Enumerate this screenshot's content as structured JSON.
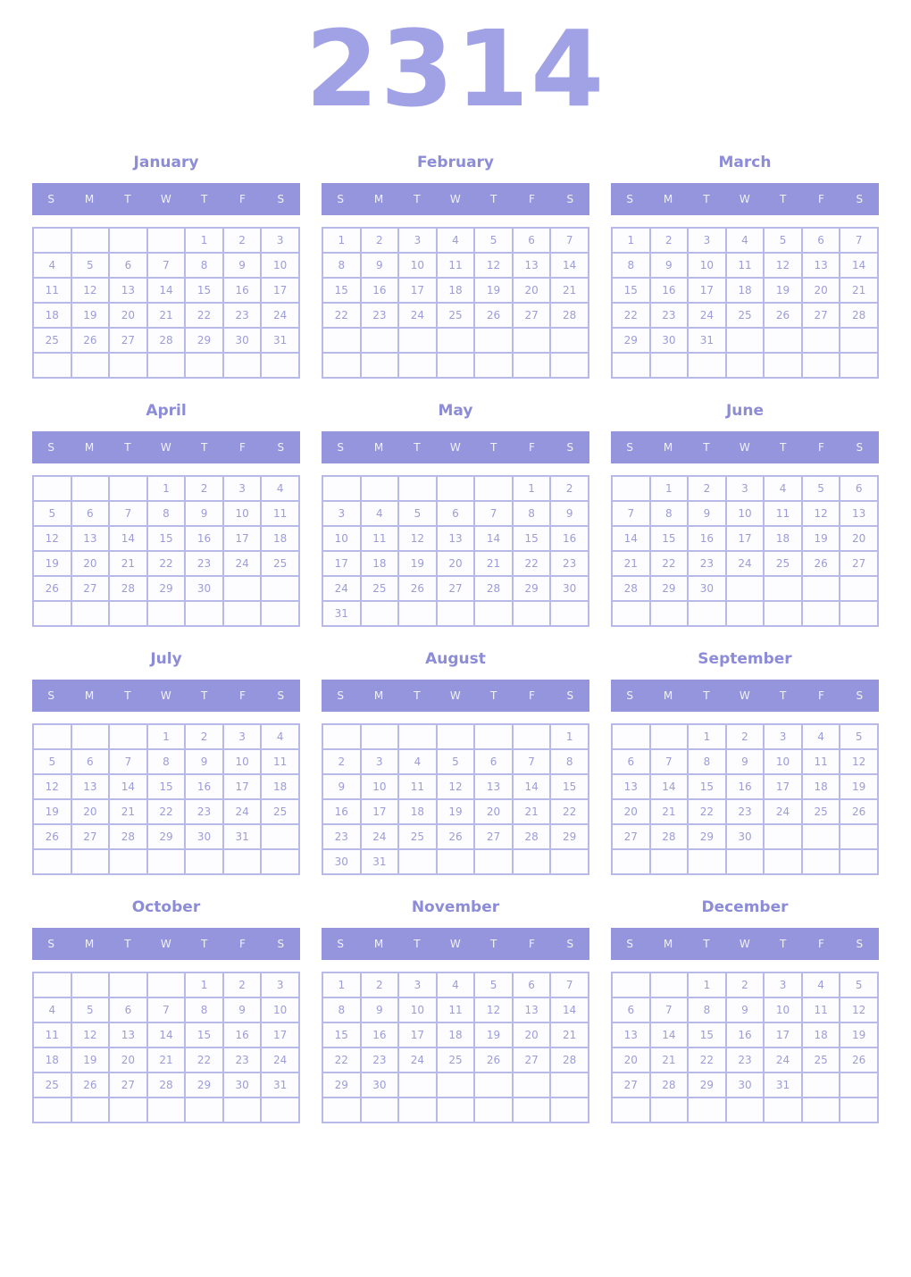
{
  "page": {
    "year": "2314"
  },
  "colors": {
    "year_text": "#a1a1e5",
    "month_title_text": "#8c8cd8",
    "weekday_bar_background": "#9495dd",
    "weekday_bar_text": "#f2f2fb",
    "cell_border": "#b9b9e9",
    "cell_background": "#fdfdff",
    "day_number_text": "#9c9cd9",
    "page_background": "#ffffff"
  },
  "weekday_headers": [
    "S",
    "M",
    "T",
    "W",
    "T",
    "F",
    "S"
  ],
  "months": [
    {
      "name": "January",
      "weeks": [
        [
          "",
          "",
          "",
          "",
          "1",
          "2",
          "3"
        ],
        [
          "4",
          "5",
          "6",
          "7",
          "8",
          "9",
          "10"
        ],
        [
          "11",
          "12",
          "13",
          "14",
          "15",
          "16",
          "17"
        ],
        [
          "18",
          "19",
          "20",
          "21",
          "22",
          "23",
          "24"
        ],
        [
          "25",
          "26",
          "27",
          "28",
          "29",
          "30",
          "31"
        ],
        [
          "",
          "",
          "",
          "",
          "",
          "",
          ""
        ]
      ]
    },
    {
      "name": "February",
      "weeks": [
        [
          "1",
          "2",
          "3",
          "4",
          "5",
          "6",
          "7"
        ],
        [
          "8",
          "9",
          "10",
          "11",
          "12",
          "13",
          "14"
        ],
        [
          "15",
          "16",
          "17",
          "18",
          "19",
          "20",
          "21"
        ],
        [
          "22",
          "23",
          "24",
          "25",
          "26",
          "27",
          "28"
        ],
        [
          "",
          "",
          "",
          "",
          "",
          "",
          ""
        ],
        [
          "",
          "",
          "",
          "",
          "",
          "",
          ""
        ]
      ]
    },
    {
      "name": "March",
      "weeks": [
        [
          "1",
          "2",
          "3",
          "4",
          "5",
          "6",
          "7"
        ],
        [
          "8",
          "9",
          "10",
          "11",
          "12",
          "13",
          "14"
        ],
        [
          "15",
          "16",
          "17",
          "18",
          "19",
          "20",
          "21"
        ],
        [
          "22",
          "23",
          "24",
          "25",
          "26",
          "27",
          "28"
        ],
        [
          "29",
          "30",
          "31",
          "",
          "",
          "",
          ""
        ],
        [
          "",
          "",
          "",
          "",
          "",
          "",
          ""
        ]
      ]
    },
    {
      "name": "April",
      "weeks": [
        [
          "",
          "",
          "",
          "1",
          "2",
          "3",
          "4"
        ],
        [
          "5",
          "6",
          "7",
          "8",
          "9",
          "10",
          "11"
        ],
        [
          "12",
          "13",
          "14",
          "15",
          "16",
          "17",
          "18"
        ],
        [
          "19",
          "20",
          "21",
          "22",
          "23",
          "24",
          "25"
        ],
        [
          "26",
          "27",
          "28",
          "29",
          "30",
          "",
          ""
        ],
        [
          "",
          "",
          "",
          "",
          "",
          "",
          ""
        ]
      ]
    },
    {
      "name": "May",
      "weeks": [
        [
          "",
          "",
          "",
          "",
          "",
          "1",
          "2"
        ],
        [
          "3",
          "4",
          "5",
          "6",
          "7",
          "8",
          "9"
        ],
        [
          "10",
          "11",
          "12",
          "13",
          "14",
          "15",
          "16"
        ],
        [
          "17",
          "18",
          "19",
          "20",
          "21",
          "22",
          "23"
        ],
        [
          "24",
          "25",
          "26",
          "27",
          "28",
          "29",
          "30"
        ],
        [
          "31",
          "",
          "",
          "",
          "",
          "",
          ""
        ]
      ]
    },
    {
      "name": "June",
      "weeks": [
        [
          "",
          "1",
          "2",
          "3",
          "4",
          "5",
          "6"
        ],
        [
          "7",
          "8",
          "9",
          "10",
          "11",
          "12",
          "13"
        ],
        [
          "14",
          "15",
          "16",
          "17",
          "18",
          "19",
          "20"
        ],
        [
          "21",
          "22",
          "23",
          "24",
          "25",
          "26",
          "27"
        ],
        [
          "28",
          "29",
          "30",
          "",
          "",
          "",
          ""
        ],
        [
          "",
          "",
          "",
          "",
          "",
          "",
          ""
        ]
      ]
    },
    {
      "name": "July",
      "weeks": [
        [
          "",
          "",
          "",
          "1",
          "2",
          "3",
          "4"
        ],
        [
          "5",
          "6",
          "7",
          "8",
          "9",
          "10",
          "11"
        ],
        [
          "12",
          "13",
          "14",
          "15",
          "16",
          "17",
          "18"
        ],
        [
          "19",
          "20",
          "21",
          "22",
          "23",
          "24",
          "25"
        ],
        [
          "26",
          "27",
          "28",
          "29",
          "30",
          "31",
          ""
        ],
        [
          "",
          "",
          "",
          "",
          "",
          "",
          ""
        ]
      ]
    },
    {
      "name": "August",
      "weeks": [
        [
          "",
          "",
          "",
          "",
          "",
          "",
          "1"
        ],
        [
          "2",
          "3",
          "4",
          "5",
          "6",
          "7",
          "8"
        ],
        [
          "9",
          "10",
          "11",
          "12",
          "13",
          "14",
          "15"
        ],
        [
          "16",
          "17",
          "18",
          "19",
          "20",
          "21",
          "22"
        ],
        [
          "23",
          "24",
          "25",
          "26",
          "27",
          "28",
          "29"
        ],
        [
          "30",
          "31",
          "",
          "",
          "",
          "",
          ""
        ]
      ]
    },
    {
      "name": "September",
      "weeks": [
        [
          "",
          "",
          "1",
          "2",
          "3",
          "4",
          "5"
        ],
        [
          "6",
          "7",
          "8",
          "9",
          "10",
          "11",
          "12"
        ],
        [
          "13",
          "14",
          "15",
          "16",
          "17",
          "18",
          "19"
        ],
        [
          "20",
          "21",
          "22",
          "23",
          "24",
          "25",
          "26"
        ],
        [
          "27",
          "28",
          "29",
          "30",
          "",
          "",
          ""
        ],
        [
          "",
          "",
          "",
          "",
          "",
          "",
          ""
        ]
      ]
    },
    {
      "name": "October",
      "weeks": [
        [
          "",
          "",
          "",
          "",
          "1",
          "2",
          "3"
        ],
        [
          "4",
          "5",
          "6",
          "7",
          "8",
          "9",
          "10"
        ],
        [
          "11",
          "12",
          "13",
          "14",
          "15",
          "16",
          "17"
        ],
        [
          "18",
          "19",
          "20",
          "21",
          "22",
          "23",
          "24"
        ],
        [
          "25",
          "26",
          "27",
          "28",
          "29",
          "30",
          "31"
        ],
        [
          "",
          "",
          "",
          "",
          "",
          "",
          ""
        ]
      ]
    },
    {
      "name": "November",
      "weeks": [
        [
          "1",
          "2",
          "3",
          "4",
          "5",
          "6",
          "7"
        ],
        [
          "8",
          "9",
          "10",
          "11",
          "12",
          "13",
          "14"
        ],
        [
          "15",
          "16",
          "17",
          "18",
          "19",
          "20",
          "21"
        ],
        [
          "22",
          "23",
          "24",
          "25",
          "26",
          "27",
          "28"
        ],
        [
          "29",
          "30",
          "",
          "",
          "",
          "",
          ""
        ],
        [
          "",
          "",
          "",
          "",
          "",
          "",
          ""
        ]
      ]
    },
    {
      "name": "December",
      "weeks": [
        [
          "",
          "",
          "1",
          "2",
          "3",
          "4",
          "5"
        ],
        [
          "6",
          "7",
          "8",
          "9",
          "10",
          "11",
          "12"
        ],
        [
          "13",
          "14",
          "15",
          "16",
          "17",
          "18",
          "19"
        ],
        [
          "20",
          "21",
          "22",
          "23",
          "24",
          "25",
          "26"
        ],
        [
          "27",
          "28",
          "29",
          "30",
          "31",
          "",
          ""
        ],
        [
          "",
          "",
          "",
          "",
          "",
          "",
          ""
        ]
      ]
    }
  ]
}
